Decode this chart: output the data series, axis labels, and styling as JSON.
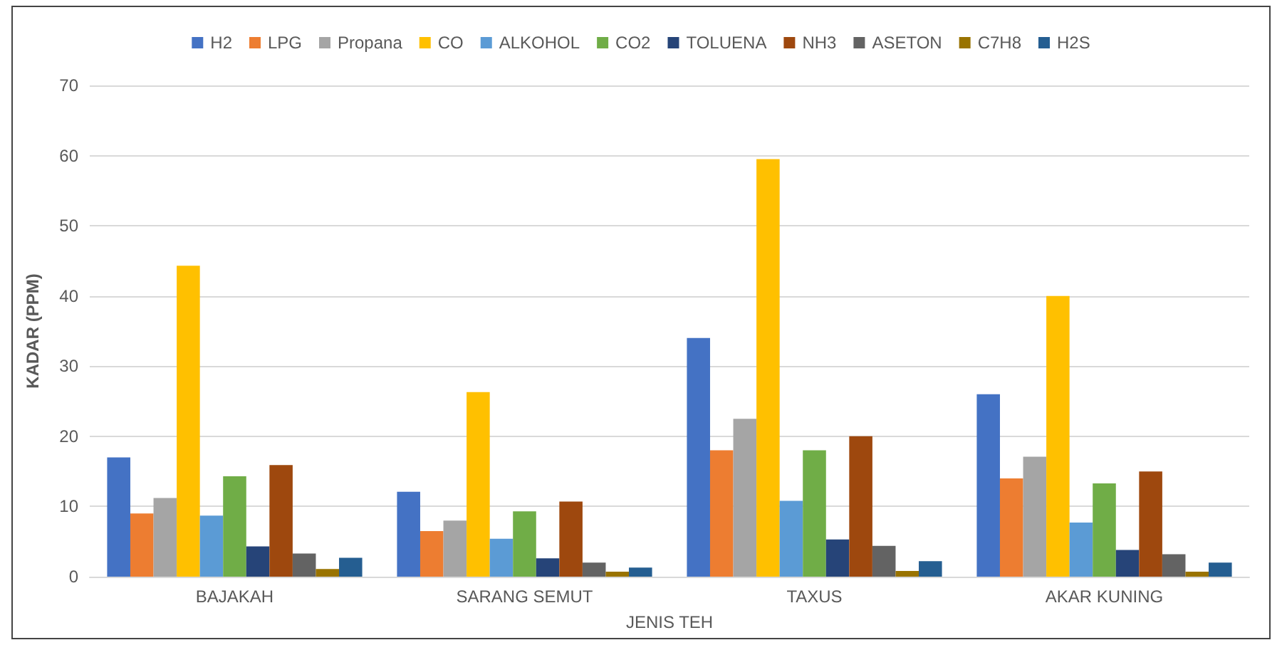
{
  "chart_data": {
    "type": "bar",
    "xlabel": "JENIS TEH",
    "ylabel": "KADAR (PPM)",
    "categories": [
      "BAJAKAH",
      "SARANG SEMUT",
      "TAXUS",
      "AKAR KUNING"
    ],
    "series": [
      {
        "name": "H2",
        "color": "#4472c4",
        "values": [
          17,
          12.1,
          34,
          26
        ]
      },
      {
        "name": "LPG",
        "color": "#ed7d31",
        "values": [
          9,
          6.5,
          18,
          14
        ]
      },
      {
        "name": "Propana",
        "color": "#a5a5a5",
        "values": [
          11.2,
          8,
          22.5,
          17.1
        ]
      },
      {
        "name": "CO",
        "color": "#ffc000",
        "values": [
          44.3,
          26.3,
          59.5,
          40
        ]
      },
      {
        "name": "ALKOHOL",
        "color": "#5b9bd5",
        "values": [
          8.7,
          5.4,
          10.8,
          7.7
        ]
      },
      {
        "name": "CO2",
        "color": "#70ad47",
        "values": [
          14.3,
          9.3,
          18,
          13.3
        ]
      },
      {
        "name": "TOLUENA",
        "color": "#264478",
        "values": [
          4.3,
          2.6,
          5.3,
          3.8
        ]
      },
      {
        "name": "NH3",
        "color": "#9e480e",
        "values": [
          15.9,
          10.7,
          20,
          15
        ]
      },
      {
        "name": "ASETON",
        "color": "#636363",
        "values": [
          3.3,
          2,
          4.4,
          3.2
        ]
      },
      {
        "name": "C7H8",
        "color": "#997300",
        "values": [
          1.1,
          0.7,
          0.8,
          0.7
        ]
      },
      {
        "name": "H2S",
        "color": "#255e91",
        "values": [
          2.7,
          1.3,
          2.2,
          2
        ]
      }
    ],
    "ylim": [
      0,
      70
    ],
    "yticks": [
      0,
      10,
      20,
      30,
      40,
      50,
      60,
      70
    ],
    "grid": "y",
    "legend": "top"
  }
}
